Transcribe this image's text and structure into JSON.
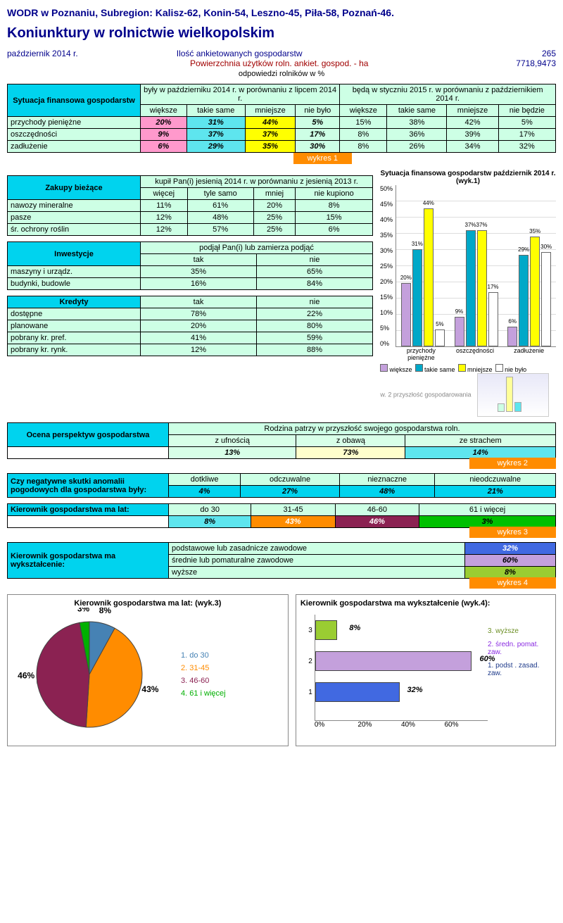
{
  "header": "WODR w Poznaniu, Subregion: Kalisz-62, Konin-54, Leszno-45, Piła-58, Poznań-46.",
  "title": "Koniunktury w rolnictwie wielkopolskim",
  "date": "październik 2014 r.",
  "stats": {
    "count_label": "Ilość ankietowanych gospodarstw",
    "count": "265",
    "area_label": "Powierzchnia użytków roln. ankiet. gospod. - ha",
    "area": "7718,9473"
  },
  "resp_pct": "odpowiedzi rolników w %",
  "t1": {
    "title": "Sytuacja finansowa gospodarstw",
    "h1": "były w październiku 2014 r. w porównaniu z lipcem 2014 r.",
    "h2": "będą w styczniu 2015 r. w porównaniu z październikiem 2014 r.",
    "cols1": [
      "większe",
      "takie same",
      "mniejsze",
      "nie było"
    ],
    "cols2": [
      "większe",
      "takie same",
      "mniejsze",
      "nie będzie"
    ],
    "rows": [
      {
        "l": "przychody pieniężne",
        "a": [
          "20%",
          "31%",
          "44%",
          "5%"
        ],
        "b": [
          "15%",
          "38%",
          "42%",
          "5%"
        ]
      },
      {
        "l": "oszczędności",
        "a": [
          "9%",
          "37%",
          "37%",
          "17%"
        ],
        "b": [
          "8%",
          "36%",
          "39%",
          "17%"
        ]
      },
      {
        "l": "zadłużenie",
        "a": [
          "6%",
          "29%",
          "35%",
          "30%"
        ],
        "b": [
          "8%",
          "26%",
          "34%",
          "32%"
        ]
      }
    ],
    "link": "wykres 1"
  },
  "t2": {
    "title": "Zakupy bieżące",
    "h": "kupił Pan(i) jesienią 2014 r. w porównaniu z jesienią 2013 r.",
    "cols": [
      "więcej",
      "tyle samo",
      "mniej",
      "nie kupiono"
    ],
    "rows": [
      {
        "l": "nawozy mineralne",
        "v": [
          "11%",
          "61%",
          "20%",
          "8%"
        ]
      },
      {
        "l": "pasze",
        "v": [
          "12%",
          "48%",
          "25%",
          "15%"
        ]
      },
      {
        "l": "śr. ochrony roślin",
        "v": [
          "12%",
          "57%",
          "25%",
          "6%"
        ]
      }
    ]
  },
  "t3": {
    "title": "Inwestycje",
    "h": "podjął Pan(i) lub zamierza podjąć",
    "cols": [
      "tak",
      "nie"
    ],
    "rows": [
      {
        "l": "maszyny i urządz.",
        "v": [
          "35%",
          "65%"
        ]
      },
      {
        "l": "budynki, budowle",
        "v": [
          "16%",
          "84%"
        ]
      }
    ]
  },
  "t4": {
    "title": "Kredyty",
    "cols": [
      "tak",
      "nie"
    ],
    "rows": [
      {
        "l": "dostępne",
        "v": [
          "78%",
          "22%"
        ]
      },
      {
        "l": "planowane",
        "v": [
          "20%",
          "80%"
        ]
      },
      {
        "l": "pobrany kr. pref.",
        "v": [
          "41%",
          "59%"
        ]
      },
      {
        "l": "pobrany kr. rynk.",
        "v": [
          "12%",
          "88%"
        ]
      }
    ]
  },
  "t5": {
    "title": "Ocena perspektyw gospodarstwa",
    "h": "Rodzina patrzy w przyszłość swojego gospodarstwa roln.",
    "cols": [
      "z ufnością",
      "z obawą",
      "ze strachem"
    ],
    "vals": [
      "13%",
      "73%",
      "14%"
    ],
    "link": "wykres 2"
  },
  "t6": {
    "title": "Czy negatywne skutki anomalii pogodowych dla gospodarstwa były:",
    "cols": [
      "dotkliwe",
      "odczuwalne",
      "nieznaczne",
      "nieodczuwalne"
    ],
    "vals": [
      "4%",
      "27%",
      "48%",
      "21%"
    ]
  },
  "t7": {
    "title": "Kierownik gospodarstwa ma lat:",
    "cols": [
      "do 30",
      "31-45",
      "46-60",
      "61 i więcej"
    ],
    "vals": [
      "8%",
      "43%",
      "46%",
      "3%"
    ],
    "colors": [
      "#00d3ee",
      "#ff8c00",
      "#8b2252",
      "#00c000"
    ],
    "link": "wykres 3"
  },
  "t8": {
    "title": "Kierownik gospodarstwa ma wykształcenie:",
    "rows": [
      {
        "l": "podstawowe lub zasadnicze zawodowe",
        "v": "32%",
        "c": "#4169e1"
      },
      {
        "l": "średnie lub pomaturalne zawodowe",
        "v": "60%",
        "c": "#c4a0dc"
      },
      {
        "l": "wyższe",
        "v": "8%",
        "c": "#9acd32"
      }
    ],
    "link": "wykres 4"
  },
  "chart1": {
    "title": "Sytuacja finansowa gospodarstw październik 2014 r. (wyk.1)",
    "groups": [
      "przychody pieniężne",
      "oszczędności",
      "zadłużenie"
    ],
    "series": [
      "większe",
      "takie same",
      "mniejsze",
      "nie było"
    ],
    "colors": [
      "#c4a0dc",
      "#00a8c8",
      "#ffff00",
      "#ffffff"
    ],
    "data": [
      [
        20,
        31,
        44,
        5
      ],
      [
        9,
        37,
        37,
        17
      ],
      [
        6,
        29,
        35,
        30
      ]
    ],
    "ymax": 50,
    "ystep": 5
  },
  "chart2_title": "w. 2 przyszłość gospodarowania",
  "chart3": {
    "title": "Kierownik gospodarstwa ma lat: (wyk.3)",
    "legend": [
      "1. do 30",
      "2. 31-45",
      "3. 46-60",
      "4. 61 i więcej"
    ],
    "colors": [
      "#4682b4",
      "#ff8c00",
      "#8b2252",
      "#00b000"
    ],
    "vals": [
      8,
      43,
      46,
      3
    ]
  },
  "chart4": {
    "title": "Kierownik gospodarstwa ma wykształcenie (wyk.4):",
    "legend": [
      "3. wyższe",
      "2. średn. pomat. zaw.",
      "1. podst . zasad. zaw."
    ],
    "legend_colors": [
      "#6b8e23",
      "#8a2be2",
      "#1e3a8a"
    ],
    "bars": [
      {
        "y": "1",
        "v": 32,
        "c": "#4169e1"
      },
      {
        "y": "2",
        "v": 60,
        "c": "#c4a0dc"
      },
      {
        "y": "3",
        "v": 8,
        "c": "#9acd32"
      }
    ],
    "xmax": 60,
    "xstep": 20
  }
}
